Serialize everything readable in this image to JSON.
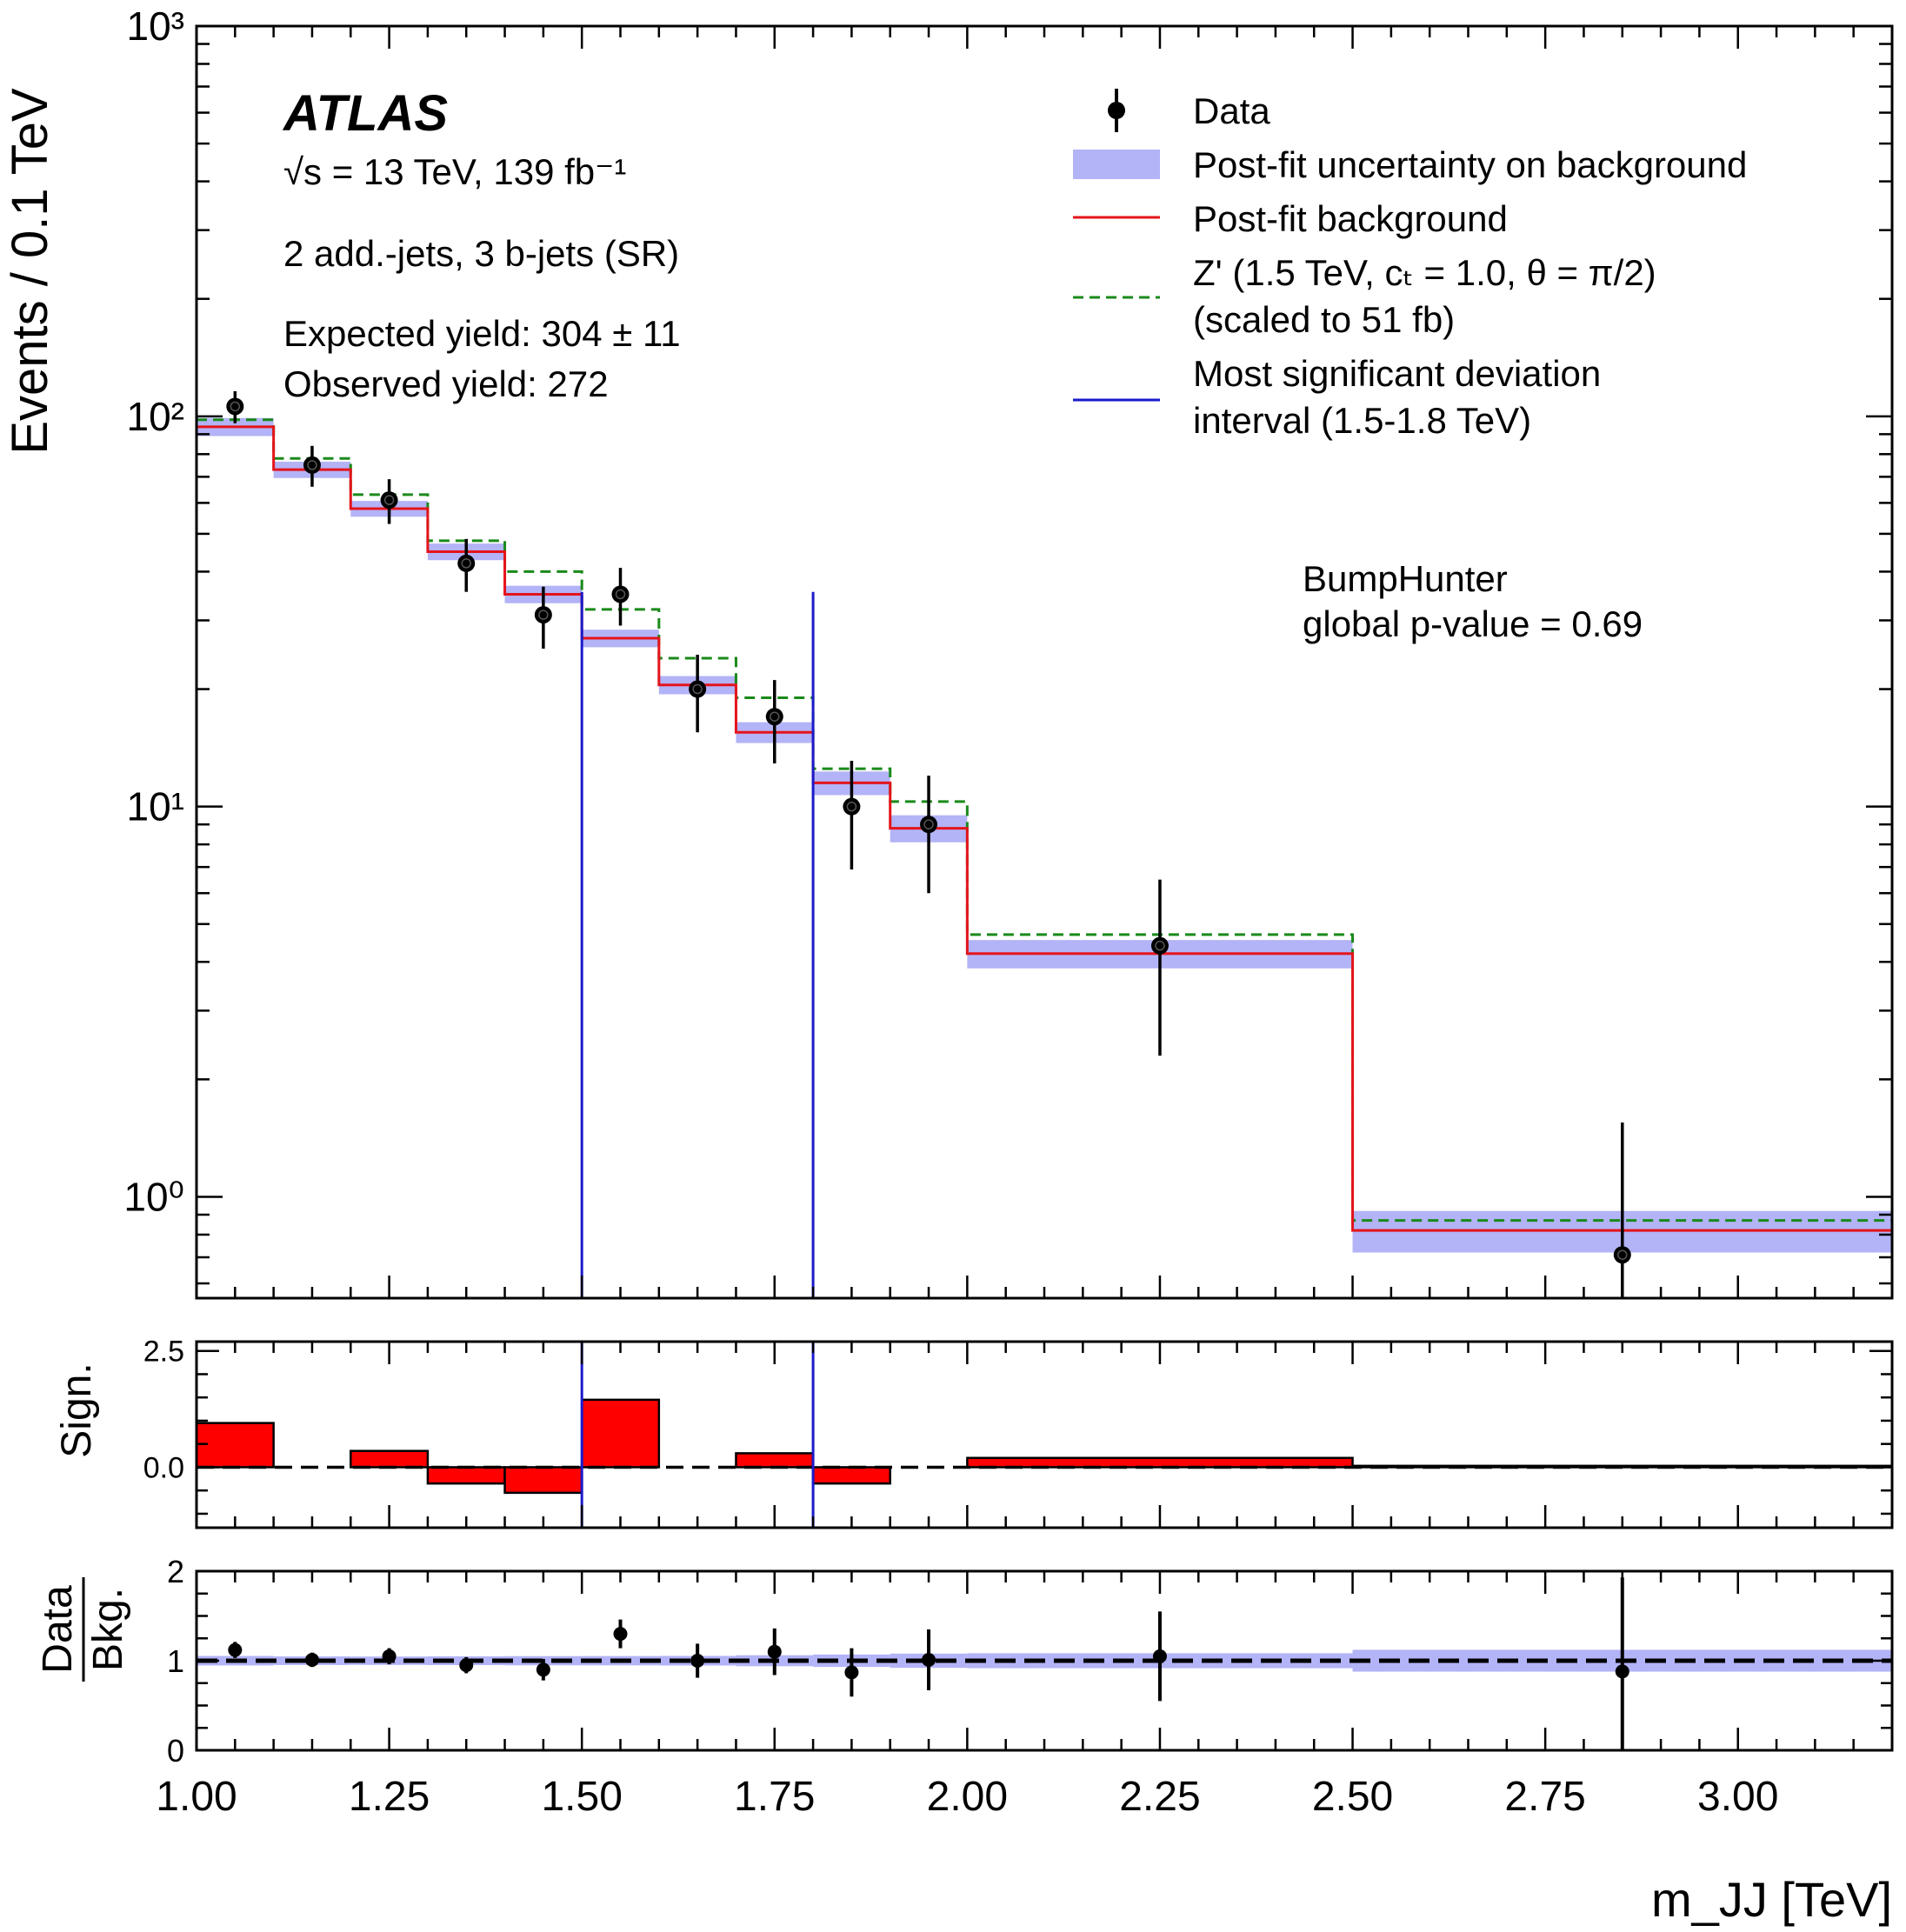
{
  "chart_data": {
    "type": "histogram",
    "experiment": "ATLAS",
    "energy_text": "√s = 13 TeV, 139 fb⁻¹",
    "region_text": "2 add.-jets, 3 b-jets (SR)",
    "expected_yield": "Expected yield: 304 ± 11",
    "observed_yield": "Observed yield: 272",
    "bumphunter_line1": "BumpHunter",
    "bumphunter_line2": "global p-value = 0.69",
    "xlabel": "m_JJ [TeV]",
    "ylabel_main": "Events / 0.1 TeV",
    "ylabel_sign": "Sign.",
    "ylabel_ratio_num": "Data",
    "ylabel_ratio_den": "Bkg.",
    "xlim": [
      1.0,
      3.2
    ],
    "main_ylim": [
      0.55,
      1000
    ],
    "main_yscale": "log",
    "main_yticks": [
      "10⁰",
      "10¹",
      "10²",
      "10³"
    ],
    "sign_ylim": [
      -1.3,
      2.7
    ],
    "sign_yticks": [
      "0.0",
      "2.5"
    ],
    "ratio_ylim": [
      0,
      2
    ],
    "ratio_yticks": [
      "0",
      "1",
      "2"
    ],
    "xticks": [
      "1.00",
      "1.25",
      "1.50",
      "1.75",
      "2.00",
      "2.25",
      "2.50",
      "2.75",
      "3.00"
    ],
    "legend_position": "top-right",
    "legend": [
      {
        "label": "Data",
        "style": "marker"
      },
      {
        "label": "Post-fit uncertainty on background",
        "style": "band"
      },
      {
        "label": "Post-fit background",
        "style": "red-line"
      },
      {
        "label": "Z' (1.5 TeV, cₜ = 1.0, θ = π/2)",
        "label2": "(scaled to 51 fb)",
        "style": "green-dashed"
      },
      {
        "label": "Most significant deviation",
        "label2": "interval (1.5-1.8 TeV)",
        "style": "blue-line"
      }
    ],
    "bin_edges": [
      1.0,
      1.1,
      1.2,
      1.3,
      1.4,
      1.5,
      1.6,
      1.7,
      1.8,
      1.9,
      2.0,
      2.5,
      3.2
    ],
    "background": [
      94,
      73,
      58,
      45,
      35,
      27,
      20.5,
      15.5,
      11.5,
      8.8,
      4.2,
      0.82
    ],
    "background_unc": [
      5,
      3.5,
      2.7,
      2.2,
      1.8,
      1.4,
      1.1,
      0.95,
      0.8,
      0.7,
      0.35,
      0.1
    ],
    "signal_plus_background": [
      98,
      78,
      63,
      48,
      40,
      32,
      24,
      19,
      12.5,
      10.3,
      4.7,
      0.87
    ],
    "data": [
      {
        "x": 1.05,
        "y": 106,
        "err": 10
      },
      {
        "x": 1.15,
        "y": 75,
        "err": 9
      },
      {
        "x": 1.25,
        "y": 61,
        "err": 8
      },
      {
        "x": 1.35,
        "y": 42,
        "err": 6.5
      },
      {
        "x": 1.45,
        "y": 31,
        "err": 5.6
      },
      {
        "x": 1.55,
        "y": 35,
        "err": 5.9
      },
      {
        "x": 1.65,
        "y": 20,
        "err": 4.5
      },
      {
        "x": 1.75,
        "y": 17,
        "err": 4.1
      },
      {
        "x": 1.85,
        "y": 10,
        "err": 3.1
      },
      {
        "x": 1.95,
        "y": 9,
        "err": 3.0
      },
      {
        "x": 2.25,
        "y": 4.4,
        "err": 2.1
      },
      {
        "x": 2.85,
        "y": 0.71,
        "err": 0.84
      }
    ],
    "deviation_interval": [
      1.5,
      1.8
    ],
    "significance": [
      0.95,
      0.0,
      0.35,
      -0.35,
      -0.55,
      1.45,
      0.0,
      0.3,
      -0.35,
      0.0,
      0.2,
      0.03
    ],
    "ratio": [
      {
        "x": 1.05,
        "y": 1.12,
        "err": 0.09
      },
      {
        "x": 1.15,
        "y": 1.01,
        "err": 0.08
      },
      {
        "x": 1.25,
        "y": 1.05,
        "err": 0.09
      },
      {
        "x": 1.35,
        "y": 0.95,
        "err": 0.09
      },
      {
        "x": 1.45,
        "y": 0.9,
        "err": 0.12
      },
      {
        "x": 1.55,
        "y": 1.3,
        "err": 0.16
      },
      {
        "x": 1.65,
        "y": 1.0,
        "err": 0.19
      },
      {
        "x": 1.75,
        "y": 1.1,
        "err": 0.26
      },
      {
        "x": 1.85,
        "y": 0.87,
        "err": 0.27
      },
      {
        "x": 1.95,
        "y": 1.01,
        "err": 0.34
      },
      {
        "x": 2.25,
        "y": 1.05,
        "err": 0.5
      },
      {
        "x": 2.85,
        "y": 0.88,
        "err": 1.05
      }
    ],
    "colors": {
      "band": "#b3b3f7",
      "background": "#e4141b",
      "signal": "#1a8a1a",
      "interval": "#1a1acc",
      "sign_bar": "#ff0000",
      "data": "#000000"
    }
  }
}
